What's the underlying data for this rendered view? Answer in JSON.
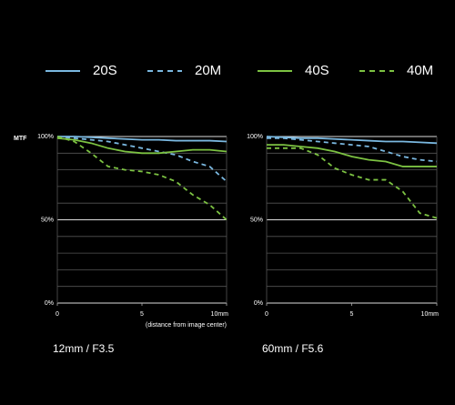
{
  "chart_data": [
    {
      "type": "line",
      "ylabel": "MTF",
      "xlabel": "(distance from image center)",
      "caption": "12mm / F3.5",
      "x": [
        0,
        1,
        2,
        3,
        4,
        5,
        6,
        7,
        8,
        9,
        10
      ],
      "xlim": [
        0,
        10
      ],
      "xticks": [
        0,
        5,
        {
          "value": 10,
          "label": "10mm"
        }
      ],
      "ylim": [
        0,
        100
      ],
      "yticks": [
        {
          "value": 0,
          "label": "0%"
        },
        {
          "value": 50,
          "label": "50%"
        },
        {
          "value": 100,
          "label": "100%"
        }
      ],
      "minor_yticks": [
        10,
        20,
        30,
        40,
        60,
        70,
        80,
        90
      ],
      "grid": true,
      "series": [
        {
          "name": "20S",
          "color": "#7ab8e0",
          "dashed": false,
          "values": [
            100,
            100,
            99.5,
            99,
            98.5,
            98,
            98,
            97.5,
            97.5,
            97.5,
            97
          ]
        },
        {
          "name": "20M",
          "color": "#7ab8e0",
          "dashed": true,
          "values": [
            100,
            99,
            98,
            97,
            95,
            93,
            91,
            89,
            85,
            82,
            73
          ]
        },
        {
          "name": "40S",
          "color": "#7cc242",
          "dashed": false,
          "values": [
            99,
            98,
            96,
            93,
            91,
            90,
            90,
            91,
            92,
            92,
            91
          ]
        },
        {
          "name": "40M",
          "color": "#7cc242",
          "dashed": true,
          "values": [
            100,
            97,
            90,
            82,
            80,
            79,
            77,
            73,
            65,
            59,
            50
          ]
        }
      ]
    },
    {
      "type": "line",
      "caption": "60mm / F5.6",
      "x": [
        0,
        1,
        2,
        3,
        4,
        5,
        6,
        7,
        8,
        9,
        10
      ],
      "xlim": [
        0,
        10
      ],
      "xticks": [
        0,
        5,
        {
          "value": 10,
          "label": "10mm"
        }
      ],
      "ylim": [
        0,
        100
      ],
      "yticks": [
        {
          "value": 0,
          "label": "0%"
        },
        {
          "value": 50,
          "label": "50%"
        },
        {
          "value": 100,
          "label": "100%"
        }
      ],
      "minor_yticks": [
        10,
        20,
        30,
        40,
        60,
        70,
        80,
        90
      ],
      "grid": true,
      "series": [
        {
          "name": "20S",
          "color": "#7ab8e0",
          "dashed": false,
          "values": [
            100,
            99.5,
            99,
            99,
            98.5,
            98,
            97.5,
            97,
            97,
            96.5,
            96
          ]
        },
        {
          "name": "20M",
          "color": "#7ab8e0",
          "dashed": true,
          "values": [
            99,
            99,
            98,
            97,
            96,
            95,
            94,
            91,
            88,
            86,
            85
          ]
        },
        {
          "name": "40S",
          "color": "#7cc242",
          "dashed": false,
          "values": [
            95,
            95,
            94,
            93,
            91,
            88,
            86,
            85,
            82,
            82,
            82
          ]
        },
        {
          "name": "40M",
          "color": "#7cc242",
          "dashed": true,
          "values": [
            93,
            93,
            93,
            89,
            81,
            77,
            74,
            74,
            67,
            54,
            51
          ]
        }
      ]
    }
  ]
}
